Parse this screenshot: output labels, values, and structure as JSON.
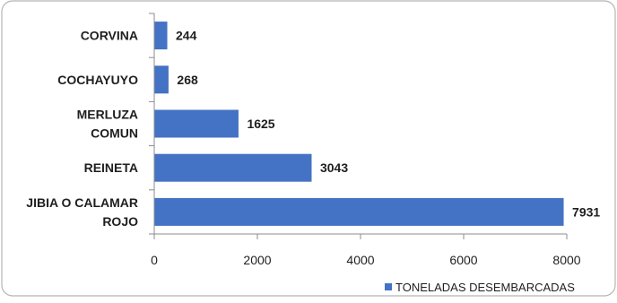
{
  "chart_data": {
    "type": "bar",
    "orientation": "horizontal",
    "categories": [
      [
        "CORVINA"
      ],
      [
        "COCHAYUYO"
      ],
      [
        "MERLUZA",
        "COMUN"
      ],
      [
        "REINETA"
      ],
      [
        "JIBIA O CALAMAR",
        "ROJO"
      ]
    ],
    "series": [
      {
        "name": "TONELADAS DESEMBARCADAS",
        "values": [
          244,
          268,
          1625,
          3043,
          7931
        ],
        "value_labels": [
          "244",
          "268",
          "1625",
          "3043",
          "7931"
        ],
        "color": "#4472C4"
      }
    ],
    "xlim": [
      0,
      8000
    ],
    "xticks": [
      "0",
      "2000",
      "4000",
      "6000",
      "8000"
    ],
    "grid": false,
    "legend_position": "bottom-right"
  }
}
